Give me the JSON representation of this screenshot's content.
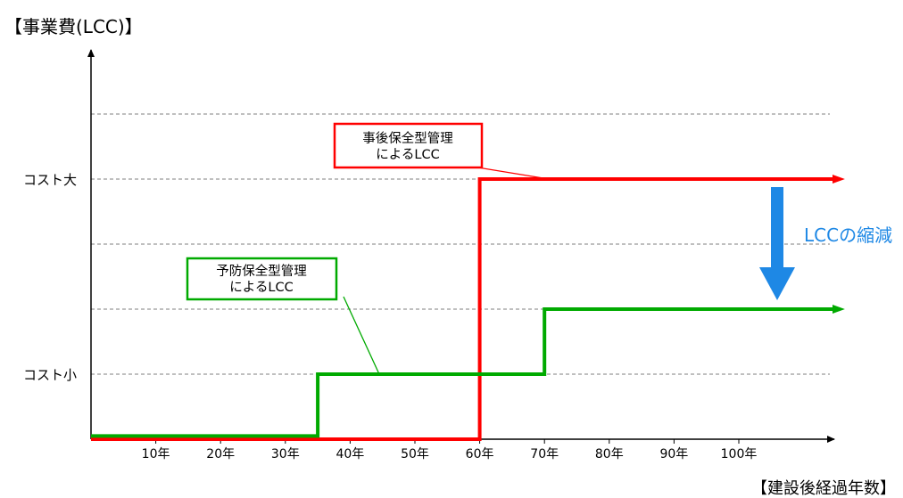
{
  "chart_data": {
    "type": "line",
    "ylabel": "【事業費(LCC)】",
    "xlabel": "【建設後経過年数】",
    "x_ticks": [
      "10年",
      "20年",
      "30年",
      "40年",
      "50年",
      "60年",
      "70年",
      "80年",
      "90年",
      "100年"
    ],
    "y_ticks": [
      "コスト小",
      "コスト大"
    ],
    "x_range": [
      0,
      115
    ],
    "y_levels": 5,
    "grid": "horizontal-dashed",
    "series": [
      {
        "name": "事後保全型管理によるLCC",
        "color": "#ff0000",
        "x": [
          0,
          60,
          60,
          115
        ],
        "y": [
          0,
          0,
          4,
          4
        ],
        "label_lines": [
          "事後保全型管理",
          "によるLCC"
        ]
      },
      {
        "name": "予防保全型管理によるLCC",
        "color": "#00aa00",
        "x": [
          0,
          35,
          35,
          70,
          70,
          115
        ],
        "y": [
          0.05,
          0.05,
          1,
          1,
          2,
          2
        ],
        "label_lines": [
          "予防保全型管理",
          "によるLCC"
        ]
      }
    ],
    "annotation": {
      "text": "LCCの縮減",
      "color": "#1e88e5"
    }
  }
}
